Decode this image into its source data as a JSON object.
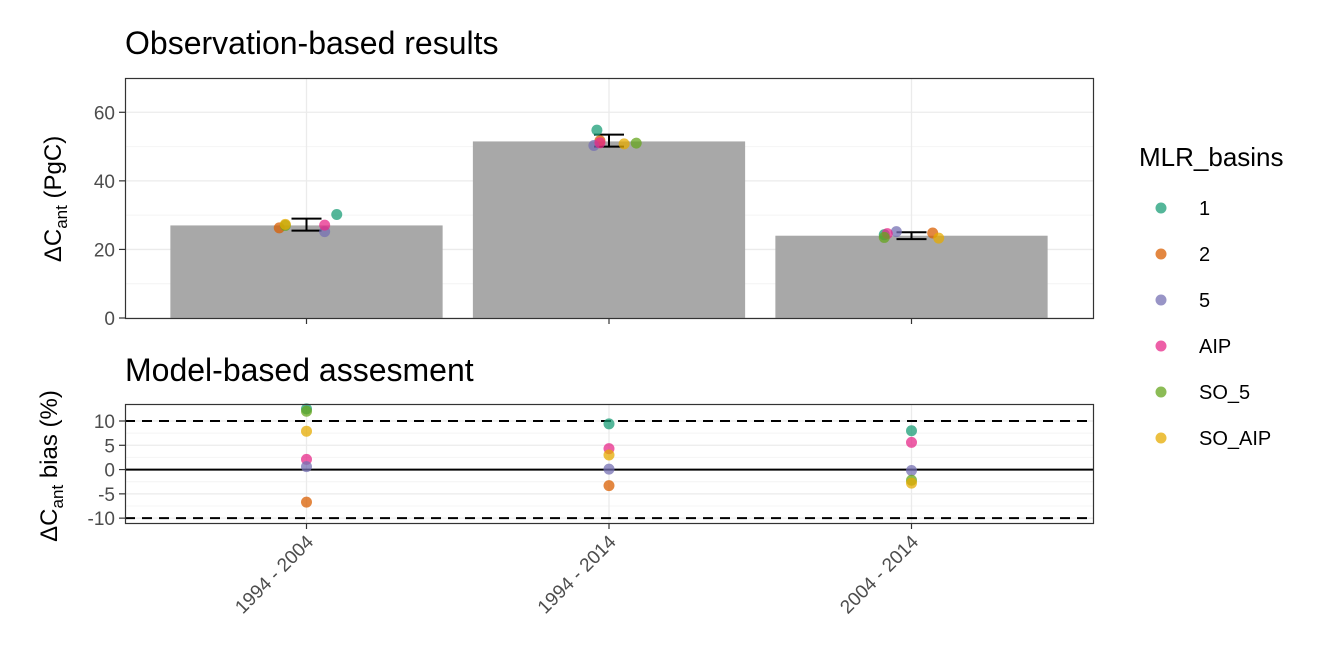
{
  "colors": {
    "bar": "#a8a8a8",
    "grid_major": "#ebebeb",
    "grid_minor": "#f4f4f4",
    "panel_border": "#333333",
    "series": {
      "1": "#1b9e77",
      "2": "#d95f02",
      "5": "#7570b3",
      "AIP": "#e7298a",
      "SO_5": "#66a61e",
      "SO_AIP": "#e6ab02"
    }
  },
  "chart_data": [
    {
      "type": "bar",
      "title": "Observation-based results",
      "ylabel_main": "ΔC",
      "ylabel_sub": "ant",
      "ylabel_tail": " (PgC)",
      "ylim": [
        0,
        70
      ],
      "yticks": [
        0,
        20,
        40,
        60
      ],
      "ytick_labels": [
        "0",
        "20",
        "40",
        "60"
      ],
      "categories": [
        "1994 - 2004",
        "1994 - 2014",
        "2004 - 2014"
      ],
      "values": [
        27,
        51.5,
        24
      ],
      "error_bars": [
        [
          25.5,
          29.0
        ],
        [
          50.0,
          53.5
        ],
        [
          23.0,
          25.0
        ]
      ],
      "grid": true,
      "points": [
        {
          "category": "1994 - 2004",
          "series": "1",
          "offset": 0.1,
          "y": 30.2
        },
        {
          "category": "1994 - 2004",
          "series": "2",
          "offset": -0.09,
          "y": 26.3
        },
        {
          "category": "1994 - 2004",
          "series": "5",
          "offset": 0.06,
          "y": 25.2
        },
        {
          "category": "1994 - 2004",
          "series": "AIP",
          "offset": 0.06,
          "y": 27.1
        },
        {
          "category": "1994 - 2004",
          "series": "SO_5",
          "offset": -0.07,
          "y": 27.0
        },
        {
          "category": "1994 - 2004",
          "series": "SO_AIP",
          "offset": -0.07,
          "y": 27.3
        },
        {
          "category": "1994 - 2014",
          "series": "1",
          "offset": -0.04,
          "y": 54.8
        },
        {
          "category": "1994 - 2014",
          "series": "2",
          "offset": -0.03,
          "y": 51.7
        },
        {
          "category": "1994 - 2014",
          "series": "5",
          "offset": -0.05,
          "y": 50.3
        },
        {
          "category": "1994 - 2014",
          "series": "AIP",
          "offset": -0.03,
          "y": 51.1
        },
        {
          "category": "1994 - 2014",
          "series": "SO_5",
          "offset": 0.09,
          "y": 51.0
        },
        {
          "category": "1994 - 2014",
          "series": "SO_AIP",
          "offset": 0.05,
          "y": 50.8
        },
        {
          "category": "2004 - 2014",
          "series": "1",
          "offset": -0.09,
          "y": 24.3
        },
        {
          "category": "2004 - 2014",
          "series": "2",
          "offset": 0.07,
          "y": 24.8
        },
        {
          "category": "2004 - 2014",
          "series": "5",
          "offset": -0.05,
          "y": 25.2
        },
        {
          "category": "2004 - 2014",
          "series": "AIP",
          "offset": -0.08,
          "y": 24.6
        },
        {
          "category": "2004 - 2014",
          "series": "SO_5",
          "offset": -0.09,
          "y": 23.5
        },
        {
          "category": "2004 - 2014",
          "series": "SO_AIP",
          "offset": 0.09,
          "y": 23.3
        }
      ]
    },
    {
      "type": "scatter",
      "title": "Model-based assesment",
      "ylabel_main": "ΔC",
      "ylabel_sub": "ant",
      "ylabel_tail": " bias (%)",
      "ylim": [
        -11,
        13.5
      ],
      "yticks": [
        -10,
        -5,
        0,
        5,
        10
      ],
      "ytick_labels": [
        "-10",
        "-5",
        "0",
        "5",
        "10"
      ],
      "reference_lines": {
        "solid": [
          0
        ],
        "dashed": [
          -10,
          10
        ]
      },
      "categories": [
        "1994 - 2004",
        "1994 - 2014",
        "2004 - 2014"
      ],
      "grid": true,
      "points": [
        {
          "category": "1994 - 2004",
          "series": "1",
          "y": 12.5
        },
        {
          "category": "1994 - 2004",
          "series": "SO_5",
          "y": 12.0
        },
        {
          "category": "1994 - 2004",
          "series": "SO_AIP",
          "y": 7.9
        },
        {
          "category": "1994 - 2004",
          "series": "AIP",
          "y": 2.1
        },
        {
          "category": "1994 - 2004",
          "series": "5",
          "y": 0.6
        },
        {
          "category": "1994 - 2004",
          "series": "2",
          "y": -6.7
        },
        {
          "category": "1994 - 2014",
          "series": "1",
          "y": 9.4
        },
        {
          "category": "1994 - 2014",
          "series": "AIP",
          "y": 4.3
        },
        {
          "category": "1994 - 2014",
          "series": "SO_AIP",
          "y": 3.0
        },
        {
          "category": "1994 - 2014",
          "series": "5",
          "y": 0.1
        },
        {
          "category": "1994 - 2014",
          "series": "2",
          "y": -3.3
        },
        {
          "category": "2004 - 2014",
          "series": "1",
          "y": 8.0
        },
        {
          "category": "2004 - 2014",
          "series": "AIP",
          "y": 5.6
        },
        {
          "category": "2004 - 2014",
          "series": "5",
          "y": -0.2
        },
        {
          "category": "2004 - 2014",
          "series": "SO_5",
          "y": -2.2
        },
        {
          "category": "2004 - 2014",
          "series": "SO_AIP",
          "y": -2.8
        }
      ]
    }
  ],
  "legend": {
    "title": "MLR_basins",
    "position": "right",
    "items": [
      "1",
      "2",
      "5",
      "AIP",
      "SO_5",
      "SO_AIP"
    ]
  }
}
